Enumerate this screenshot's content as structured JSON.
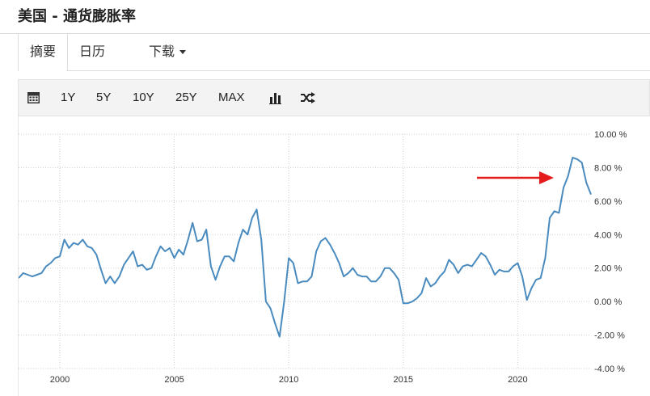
{
  "header": {
    "title": "美国 - 通货膨胀率"
  },
  "tabs": [
    {
      "label": "摘要"
    },
    {
      "label": "日历"
    },
    {
      "label": "下载"
    }
  ],
  "toolbar": {
    "buttons": [
      "1Y",
      "5Y",
      "10Y",
      "25Y",
      "MAX"
    ],
    "icons": [
      "calendar-icon",
      "bar-chart-icon",
      "shuffle-icon"
    ]
  },
  "colors": {
    "line": "#4a8bbf",
    "arrow": "#e31b1b",
    "grid": "#cfcfcf"
  },
  "chart_data": {
    "type": "line",
    "y_tick_labels": [
      "10.00 %",
      "8.00 %",
      "6.00 %",
      "4.00 %",
      "2.00 %",
      "0.00 %",
      "-2.00 %",
      "-4.00 %"
    ],
    "x_tick_labels": [
      "2000",
      "2005",
      "2010",
      "2015",
      "2020"
    ],
    "ylim": [
      -4,
      10
    ],
    "xlim": [
      1998.2,
      2023.2
    ],
    "grid": true,
    "annotation": "red arrow pointing at 2022 peak",
    "series": [
      {
        "x": [
          1998.2,
          1998.4,
          1998.6,
          1998.8,
          1999.0,
          1999.2,
          1999.4,
          1999.6,
          1999.8,
          2000.0,
          2000.2,
          2000.4,
          2000.6,
          2000.8,
          2001.0,
          2001.2,
          2001.4,
          2001.6,
          2001.8,
          2002.0,
          2002.2,
          2002.4,
          2002.6,
          2002.8,
          2003.0,
          2003.2,
          2003.4,
          2003.6,
          2003.8,
          2004.0,
          2004.2,
          2004.4,
          2004.6,
          2004.8,
          2005.0,
          2005.2,
          2005.4,
          2005.6,
          2005.8,
          2006.0,
          2006.2,
          2006.4,
          2006.6,
          2006.8,
          2007.0,
          2007.2,
          2007.4,
          2007.6,
          2007.8,
          2008.0,
          2008.2,
          2008.4,
          2008.6,
          2008.8,
          2009.0,
          2009.2,
          2009.4,
          2009.6,
          2009.8,
          2010.0,
          2010.2,
          2010.4,
          2010.6,
          2010.8,
          2011.0,
          2011.2,
          2011.4,
          2011.6,
          2011.8,
          2012.0,
          2012.2,
          2012.4,
          2012.6,
          2012.8,
          2013.0,
          2013.2,
          2013.4,
          2013.6,
          2013.8,
          2014.0,
          2014.2,
          2014.4,
          2014.6,
          2014.8,
          2015.0,
          2015.2,
          2015.4,
          2015.6,
          2015.8,
          2016.0,
          2016.2,
          2016.4,
          2016.6,
          2016.8,
          2017.0,
          2017.2,
          2017.4,
          2017.6,
          2017.8,
          2018.0,
          2018.2,
          2018.4,
          2018.6,
          2018.8,
          2019.0,
          2019.2,
          2019.4,
          2019.6,
          2019.8,
          2020.0,
          2020.2,
          2020.4,
          2020.6,
          2020.8,
          2021.0,
          2021.2,
          2021.4,
          2021.6,
          2021.8,
          2022.0,
          2022.2,
          2022.4,
          2022.6,
          2022.8,
          2023.0,
          2023.2
        ],
        "values": [
          1.4,
          1.7,
          1.6,
          1.5,
          1.6,
          1.7,
          2.1,
          2.3,
          2.6,
          2.7,
          3.7,
          3.2,
          3.5,
          3.4,
          3.7,
          3.3,
          3.2,
          2.8,
          1.9,
          1.1,
          1.5,
          1.1,
          1.5,
          2.2,
          2.6,
          3.0,
          2.1,
          2.2,
          1.9,
          2.0,
          2.7,
          3.3,
          3.0,
          3.2,
          2.6,
          3.1,
          2.8,
          3.7,
          4.7,
          3.6,
          3.7,
          4.3,
          2.1,
          1.3,
          2.1,
          2.7,
          2.7,
          2.4,
          3.5,
          4.3,
          4.0,
          5.0,
          5.5,
          3.7,
          0.0,
          -0.4,
          -1.3,
          -2.1,
          0.0,
          2.6,
          2.3,
          1.1,
          1.2,
          1.2,
          1.5,
          3.0,
          3.6,
          3.8,
          3.4,
          2.9,
          2.3,
          1.5,
          1.7,
          2.0,
          1.6,
          1.5,
          1.5,
          1.2,
          1.2,
          1.5,
          2.0,
          2.0,
          1.7,
          1.3,
          -0.1,
          -0.1,
          0.0,
          0.2,
          0.5,
          1.4,
          0.9,
          1.1,
          1.5,
          1.8,
          2.5,
          2.2,
          1.7,
          2.1,
          2.2,
          2.1,
          2.5,
          2.9,
          2.7,
          2.2,
          1.6,
          1.9,
          1.8,
          1.8,
          2.1,
          2.3,
          1.5,
          0.1,
          0.8,
          1.3,
          1.4,
          2.6,
          5.0,
          5.4,
          5.3,
          6.8,
          7.5,
          8.6,
          8.5,
          8.3,
          7.1,
          6.4
        ]
      }
    ]
  }
}
